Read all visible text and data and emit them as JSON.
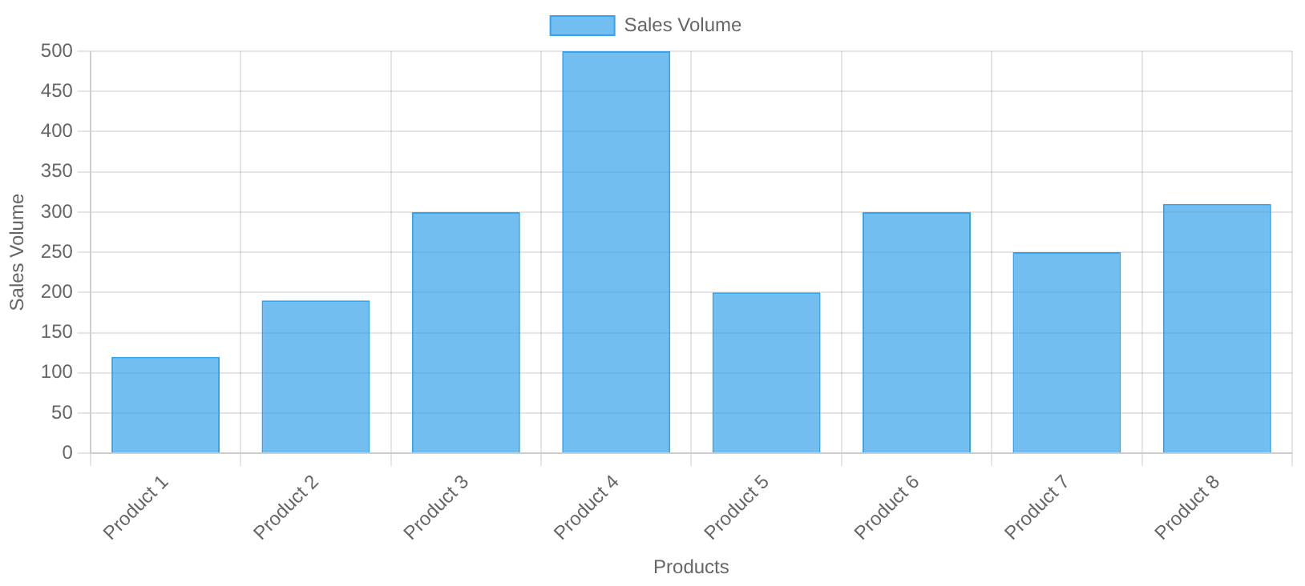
{
  "chart_data": {
    "type": "bar",
    "xlabel": "Products",
    "ylabel": "Sales Volume",
    "categories": [
      "Product 1",
      "Product 2",
      "Product 3",
      "Product 4",
      "Product 5",
      "Product 6",
      "Product 7",
      "Product 8"
    ],
    "series": [
      {
        "name": "Sales Volume",
        "color": "#36a2eb",
        "values": [
          120,
          190,
          300,
          500,
          200,
          300,
          250,
          310
        ]
      }
    ],
    "ylim": [
      0,
      500
    ],
    "yticks": [
      0,
      50,
      100,
      150,
      200,
      250,
      300,
      350,
      400,
      450,
      500
    ],
    "grid": true,
    "legend": "top"
  }
}
